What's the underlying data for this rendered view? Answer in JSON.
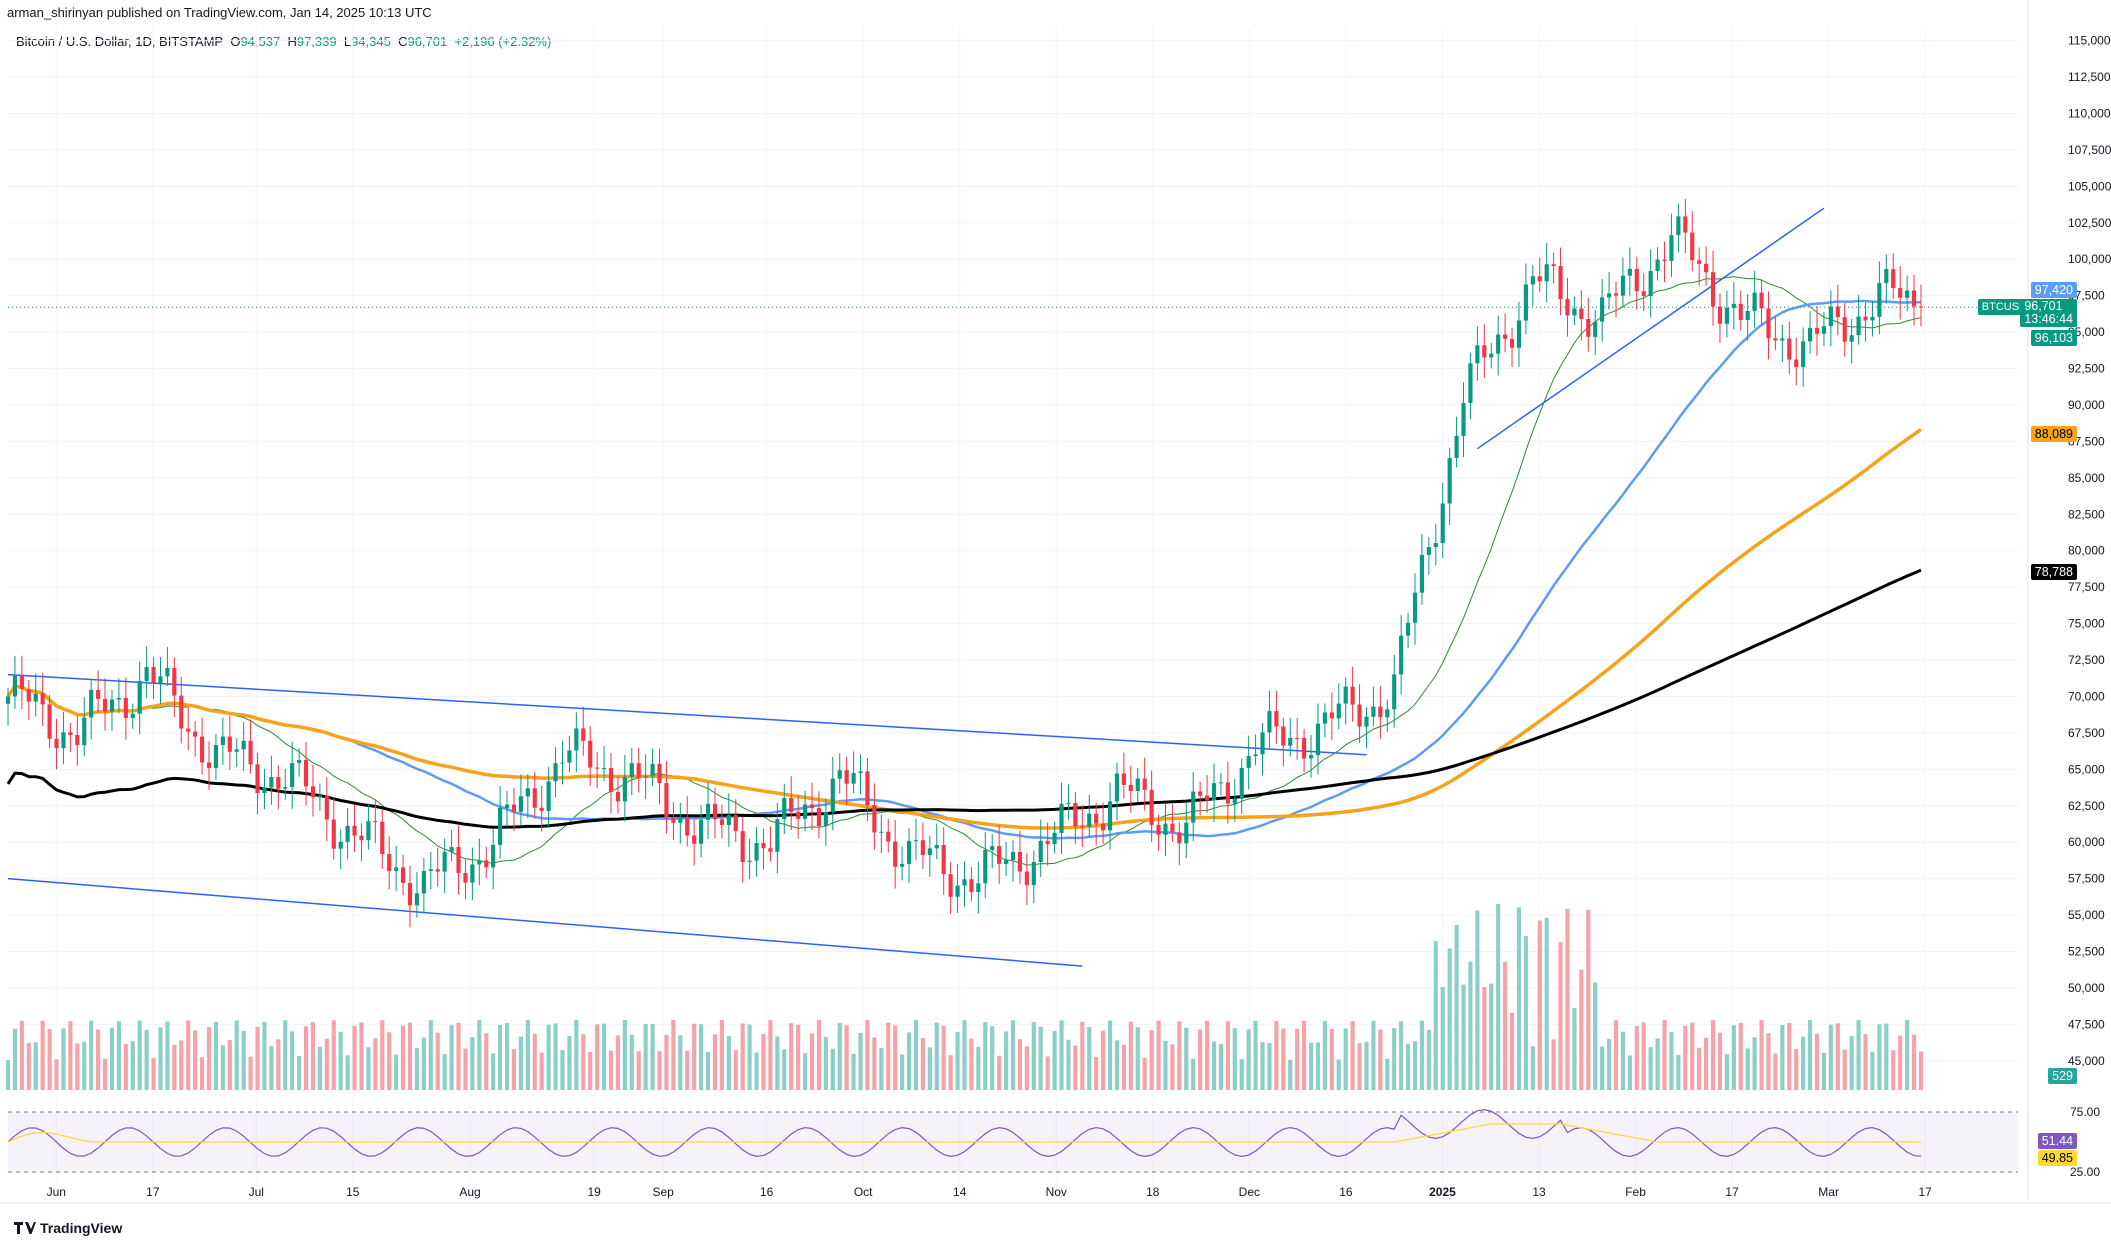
{
  "header": {
    "publisher": "arman_shirinyan published on TradingView.com, Jan 14, 2025 10:13 UTC"
  },
  "legend": {
    "symbol": "Bitcoin / U.S. Dollar, 1D, BITSTAMP",
    "o_label": "O",
    "o_val": "94,537",
    "h_label": "H",
    "h_val": "97,339",
    "l_label": "L",
    "l_val": "94,345",
    "c_label": "C",
    "c_val": "96,701",
    "change": "+2,196 (+2.32%)"
  },
  "price_tags": {
    "ma_blue": "97,420",
    "symbol": "BTCUSD",
    "last": "96,701",
    "countdown": "13:46:44",
    "ma_green": "96,103",
    "ma_orange": "88,089",
    "ma_black": "78,788",
    "volume": "529"
  },
  "rsi_tags": {
    "rsi": "51.44",
    "rsi_ma": "49.85"
  },
  "footer": {
    "brand": "TradingView"
  },
  "colors": {
    "up": "#089981",
    "down": "#f23645",
    "ma_blue": "#5b9cf6",
    "ma_green": "#2e8b2e",
    "ma_orange": "#f7a21b",
    "ma_black": "#000000",
    "channel": "#2962ff",
    "rsi": "#7e57c2",
    "rsi_ma": "#fdd835"
  },
  "chart_data": {
    "type": "candlestick",
    "title": "Bitcoin / U.S. Dollar, 1D, BITSTAMP",
    "price_axis_ticks": [
      "115,000",
      "112,500",
      "110,000",
      "107,500",
      "105,000",
      "102,500",
      "100,000",
      "97,500",
      "95,000",
      "92,500",
      "90,000",
      "87,500",
      "85,000",
      "82,500",
      "80,000",
      "77,500",
      "75,000",
      "72,500",
      "70,000",
      "67,500",
      "65,000",
      "62,500",
      "60,000",
      "57,500",
      "55,000",
      "52,500",
      "50,000",
      "47,500",
      "45,000"
    ],
    "time_axis_ticks": [
      "Jun",
      "17",
      "Jul",
      "15",
      "Aug",
      "19",
      "Sep",
      "16",
      "Oct",
      "14",
      "Nov",
      "18",
      "Dec",
      "16",
      "2025",
      "13",
      "Feb",
      "17",
      "Mar",
      "17"
    ],
    "rsi_axis_ticks": [
      "75.00",
      "25.00"
    ],
    "ylim": [
      43000,
      116000
    ],
    "x_range_days": [
      0,
      290
    ],
    "ohlc_sample": [
      {
        "d": 0,
        "close": 70000
      },
      {
        "d": 10,
        "close": 67500
      },
      {
        "d": 20,
        "close": 71500
      },
      {
        "d": 30,
        "close": 66000
      },
      {
        "d": 40,
        "close": 64500
      },
      {
        "d": 50,
        "close": 60500
      },
      {
        "d": 60,
        "close": 57000
      },
      {
        "d": 70,
        "close": 60000
      },
      {
        "d": 80,
        "close": 66000
      },
      {
        "d": 90,
        "close": 64500
      },
      {
        "d": 100,
        "close": 61000
      },
      {
        "d": 110,
        "close": 60000
      },
      {
        "d": 120,
        "close": 64500
      },
      {
        "d": 130,
        "close": 59000
      },
      {
        "d": 140,
        "close": 57500
      },
      {
        "d": 150,
        "close": 60000
      },
      {
        "d": 160,
        "close": 63500
      },
      {
        "d": 170,
        "close": 61000
      },
      {
        "d": 180,
        "close": 66500
      },
      {
        "d": 190,
        "close": 68000
      },
      {
        "d": 200,
        "close": 70500
      },
      {
        "d": 210,
        "close": 90500
      },
      {
        "d": 220,
        "close": 98500
      },
      {
        "d": 230,
        "close": 96000
      },
      {
        "d": 240,
        "close": 101500
      },
      {
        "d": 250,
        "close": 96000
      },
      {
        "d": 260,
        "close": 94000
      },
      {
        "d": 270,
        "close": 97500
      },
      {
        "d": 276,
        "close": 96701
      }
    ],
    "series": [
      {
        "name": "MA blue",
        "last": 97420
      },
      {
        "name": "MA green",
        "last": 96103
      },
      {
        "name": "MA orange",
        "last": 88089
      },
      {
        "name": "MA black",
        "last": 78788
      }
    ]
  }
}
